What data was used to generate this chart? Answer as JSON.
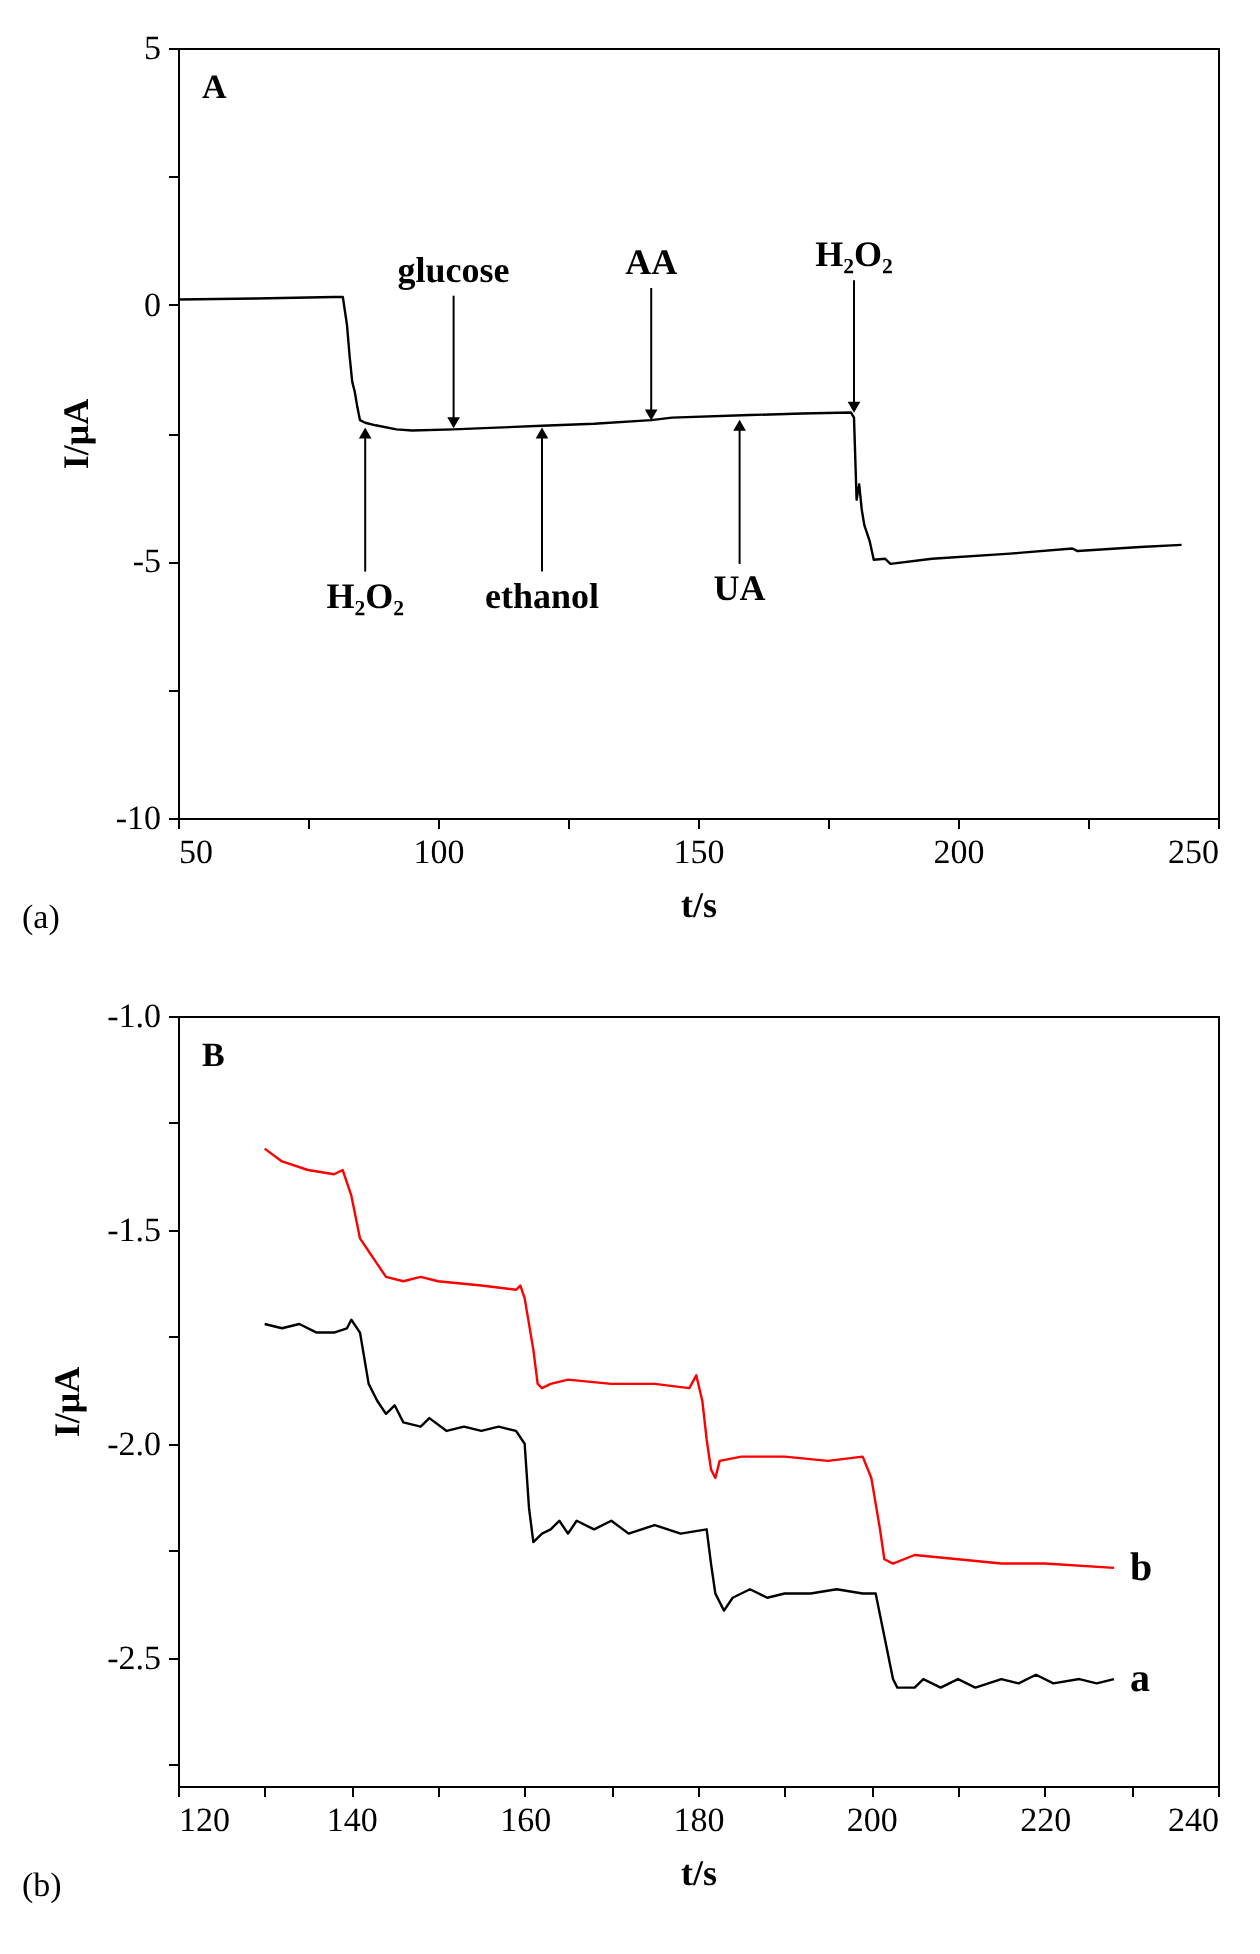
{
  "chart_data": [
    {
      "type": "line",
      "xlabel": "t/s",
      "ylabel": "I/μA",
      "xlim": [
        50,
        250
      ],
      "ylim": [
        -10,
        5
      ],
      "xticks": [
        50,
        {
          "value": 75,
          "label": null
        },
        100,
        {
          "value": 125,
          "label": null
        },
        150,
        {
          "value": 175,
          "label": null
        },
        200,
        {
          "value": 225,
          "label": null
        },
        250
      ],
      "yticks": [
        -10,
        {
          "value": -7.5,
          "label": null
        },
        -5,
        {
          "value": -2.5,
          "label": null
        },
        0,
        {
          "value": 2.5,
          "label": null
        },
        5
      ],
      "series": [
        {
          "color": "#000000",
          "x": [
            50,
            65,
            80,
            81.7,
            82.5,
            83,
            83.5,
            84,
            84.5,
            85,
            86,
            88,
            92,
            95,
            103,
            110,
            120,
            130,
            141,
            145,
            160,
            170,
            179.4,
            180,
            180.5,
            181,
            181.5,
            182,
            183,
            183.8,
            186,
            187,
            195,
            210,
            222,
            223,
            235,
            243
          ],
          "values": [
            0.1,
            0.12,
            0.15,
            0.15,
            -0.4,
            -1.0,
            -1.5,
            -1.7,
            -2.0,
            -2.25,
            -2.3,
            -2.35,
            -2.43,
            -2.45,
            -2.43,
            -2.4,
            -2.36,
            -2.32,
            -2.25,
            -2.2,
            -2.15,
            -2.12,
            -2.1,
            -2.2,
            -3.8,
            -3.5,
            -4.0,
            -4.3,
            -4.6,
            -4.97,
            -4.95,
            -5.05,
            -4.95,
            -4.85,
            -4.75,
            -4.8,
            -4.72,
            -4.68
          ]
        }
      ],
      "annotations": [
        "A",
        "(a)",
        {
          "text": "H₂O₂",
          "x": 86,
          "y": -2.5
        },
        {
          "text": "glucose",
          "x": 103,
          "y": -2.3
        },
        {
          "text": "ethanol",
          "x": 120,
          "y": -2.5
        },
        {
          "text": "AA",
          "x": 141,
          "y": -2.15
        },
        {
          "text": "UA",
          "x": 158,
          "y": -2.35
        },
        {
          "text": "H₂O₂",
          "x": 180,
          "y": -2.0
        }
      ]
    },
    {
      "type": "line",
      "xlabel": "t/s",
      "ylabel": "I/μA",
      "xlim": [
        120,
        240
      ],
      "ylim": [
        -2.8,
        -1.0
      ],
      "xticks": [
        120,
        {
          "value": 130,
          "label": null
        },
        140,
        {
          "value": 150,
          "label": null
        },
        160,
        {
          "value": 170,
          "label": null
        },
        180,
        {
          "value": 190,
          "label": null
        },
        200,
        {
          "value": 210,
          "label": null
        },
        220,
        {
          "value": 230,
          "label": null
        },
        240
      ],
      "yticks": [
        {
          "value": -2.75,
          "label": null
        },
        -2.5,
        {
          "value": -2.25,
          "label": null
        },
        {
          "value": -2.0,
          "label": "-2.0"
        },
        {
          "value": -1.75,
          "label": null
        },
        -1.5,
        {
          "value": -1.25,
          "label": null
        },
        {
          "value": -1.0,
          "label": "-1.0"
        }
      ],
      "series": [
        {
          "name": "a",
          "color": "#000000",
          "x": [
            130,
            132,
            134,
            136,
            138,
            139.5,
            140,
            141,
            142,
            143,
            144,
            145,
            146,
            148,
            149,
            151,
            153,
            155,
            157,
            159,
            160,
            160.5,
            161,
            162,
            163,
            164,
            165,
            166,
            168,
            170,
            172,
            175,
            178,
            181,
            181.5,
            182,
            183,
            184,
            186,
            188,
            190,
            193,
            196,
            199,
            200.5,
            201.5,
            202.5,
            203,
            205,
            206,
            208,
            210,
            212,
            215,
            217,
            219,
            221,
            224,
            226,
            228
          ],
          "values": [
            -1.72,
            -1.73,
            -1.72,
            -1.74,
            -1.74,
            -1.73,
            -1.71,
            -1.74,
            -1.86,
            -1.9,
            -1.93,
            -1.91,
            -1.95,
            -1.96,
            -1.94,
            -1.97,
            -1.96,
            -1.97,
            -1.96,
            -1.97,
            -2.0,
            -2.15,
            -2.23,
            -2.21,
            -2.2,
            -2.18,
            -2.21,
            -2.18,
            -2.2,
            -2.18,
            -2.21,
            -2.19,
            -2.21,
            -2.2,
            -2.28,
            -2.35,
            -2.39,
            -2.36,
            -2.34,
            -2.36,
            -2.35,
            -2.35,
            -2.34,
            -2.35,
            -2.35,
            -2.45,
            -2.55,
            -2.57,
            -2.57,
            -2.55,
            -2.57,
            -2.55,
            -2.57,
            -2.55,
            -2.56,
            -2.54,
            -2.56,
            -2.55,
            -2.56,
            -2.55
          ]
        },
        {
          "name": "b",
          "color": "#ff0000",
          "x": [
            130,
            132,
            135,
            138,
            139,
            140,
            141,
            142,
            143,
            144,
            146,
            148,
            150,
            155,
            159,
            159.5,
            160,
            161,
            161.5,
            162,
            163,
            165,
            170,
            175,
            179,
            179.8,
            180.5,
            181,
            181.5,
            182,
            182.5,
            185,
            190,
            195,
            199,
            200,
            201,
            201.5,
            202.5,
            205,
            210,
            215,
            220,
            228
          ],
          "values": [
            -1.31,
            -1.34,
            -1.36,
            -1.37,
            -1.36,
            -1.42,
            -1.52,
            -1.55,
            -1.58,
            -1.61,
            -1.62,
            -1.61,
            -1.62,
            -1.63,
            -1.64,
            -1.63,
            -1.66,
            -1.78,
            -1.86,
            -1.87,
            -1.86,
            -1.85,
            -1.86,
            -1.86,
            -1.87,
            -1.84,
            -1.9,
            -1.99,
            -2.06,
            -2.08,
            -2.04,
            -2.03,
            -2.03,
            -2.04,
            -2.03,
            -2.08,
            -2.2,
            -2.27,
            -2.28,
            -2.26,
            -2.27,
            -2.28,
            -2.28,
            -2.29
          ]
        }
      ],
      "annotations": [
        "B",
        "(b)"
      ]
    }
  ]
}
